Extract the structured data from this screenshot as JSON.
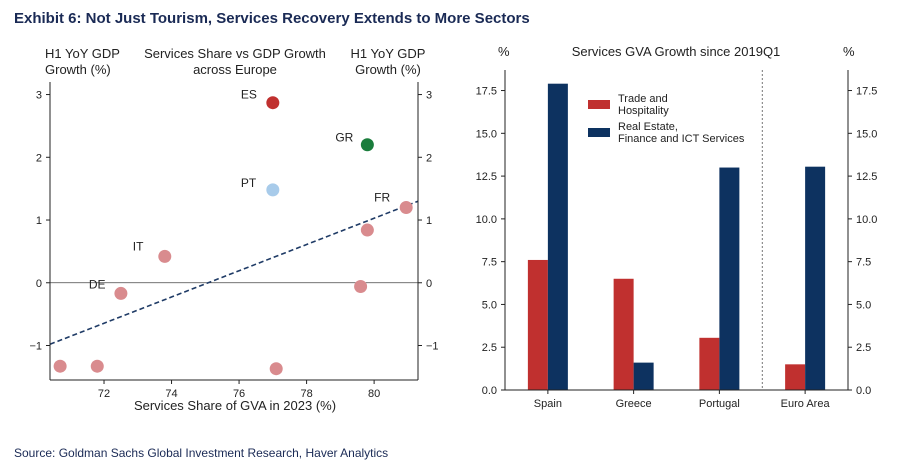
{
  "title": "Exhibit 6: Not Just Tourism, Services Recovery Extends to More Sectors",
  "source": "Source: Goldman Sachs Global Investment Research, Haver Analytics",
  "chart_data": [
    {
      "type": "scatter",
      "title_lines": [
        "Services Share vs GDP Growth",
        "across Europe"
      ],
      "ylabel_left_lines": [
        "H1 YoY GDP",
        "Growth (%)"
      ],
      "ylabel_right_lines": [
        "H1 YoY GDP",
        "Growth (%)"
      ],
      "xlabel": "Services Share of GVA in 2023 (%)",
      "xlim": [
        70.4,
        81.3
      ],
      "ylim": [
        -1.55,
        3.2
      ],
      "xticks": [
        "72",
        "74",
        "76",
        "78",
        "80"
      ],
      "yticks": [
        "−1",
        "0",
        "1",
        "2",
        "3"
      ],
      "reference_line_y": 0,
      "trend_line": {
        "x": [
          70.4,
          81.3
        ],
        "y": [
          -0.98,
          1.3
        ],
        "color": "#1f3b66"
      },
      "labeled_points": [
        {
          "label": "ES",
          "x": 77.0,
          "y": 2.87,
          "color": "#c0302f"
        },
        {
          "label": "GR",
          "x": 79.8,
          "y": 2.2,
          "color": "#1a7d3c"
        },
        {
          "label": "PT",
          "x": 77.0,
          "y": 1.48,
          "color": "#a8cbea"
        },
        {
          "label": "FR",
          "x": 80.95,
          "y": 1.2,
          "color": "#d98b8e"
        },
        {
          "label": "IT",
          "x": 73.8,
          "y": 0.42,
          "color": "#d98b8e"
        },
        {
          "label": "DE",
          "x": 72.5,
          "y": -0.17,
          "color": "#d98b8e"
        }
      ],
      "other_points": [
        {
          "x": 79.8,
          "y": 0.84
        },
        {
          "x": 79.6,
          "y": -0.06
        },
        {
          "x": 70.7,
          "y": -1.33
        },
        {
          "x": 71.8,
          "y": -1.33
        },
        {
          "x": 77.1,
          "y": -1.37
        }
      ],
      "other_color": "#d98b8e"
    },
    {
      "type": "bar",
      "title": "Services GVA Growth since 2019Q1",
      "ylabel_left": "%",
      "ylabel_right": "%",
      "categories": [
        "Spain",
        "Greece",
        "Portugal",
        "Euro Area"
      ],
      "series": [
        {
          "name": "Trade and Hospitality",
          "name_lines": [
            "Trade and",
            "Hospitality"
          ],
          "color": "#c0302f",
          "values": [
            7.6,
            6.5,
            3.05,
            1.5
          ]
        },
        {
          "name": "Real Estate, Finance and ICT Services",
          "name_lines": [
            "Real Estate,",
            "Finance and ICT Services"
          ],
          "color": "#0d3260",
          "values": [
            17.9,
            1.6,
            13.0,
            13.05
          ]
        }
      ],
      "ylim": [
        0,
        18.7
      ],
      "yticks": [
        "0.0",
        "2.5",
        "5.0",
        "7.5",
        "10.0",
        "12.5",
        "15.0",
        "17.5"
      ],
      "separator_after_category": 2,
      "legend": "top-left"
    }
  ]
}
